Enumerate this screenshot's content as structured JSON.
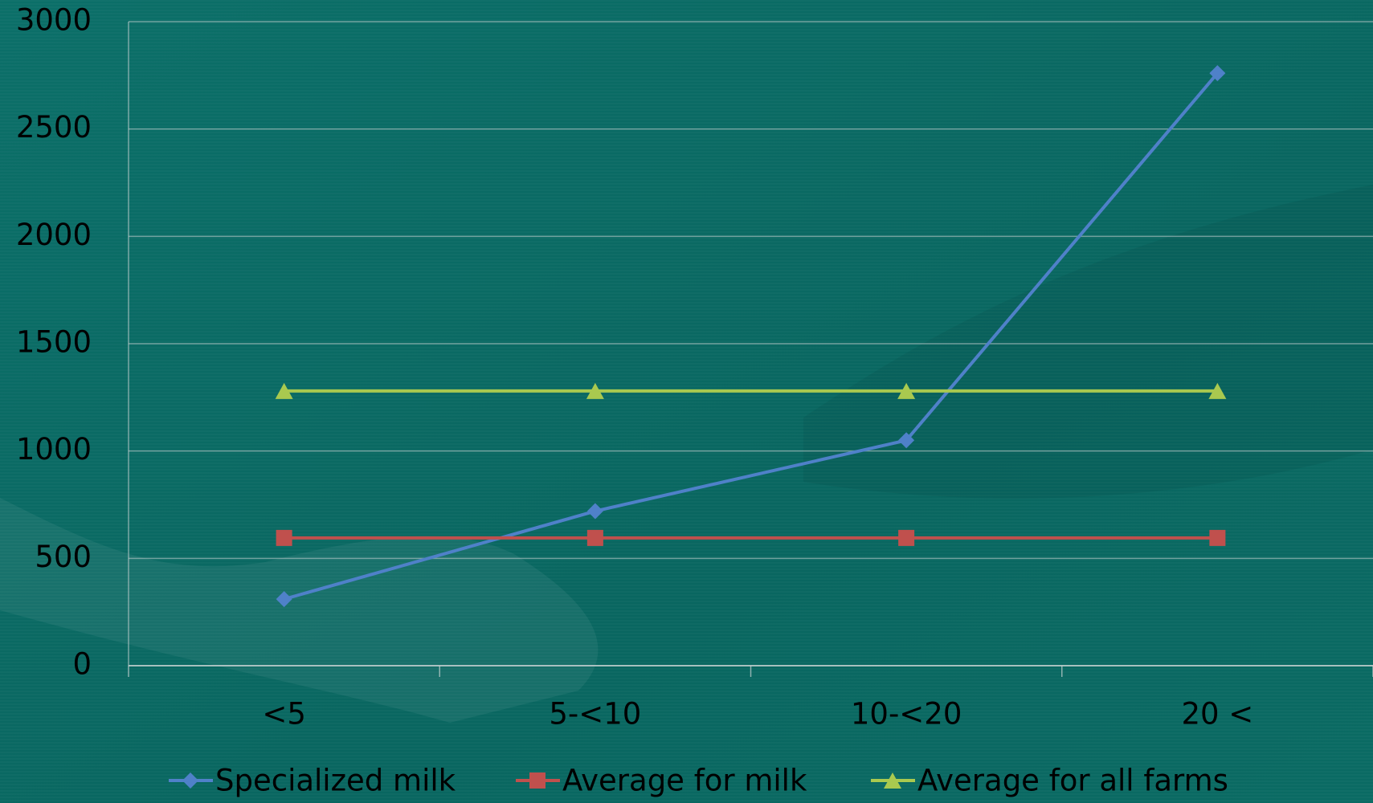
{
  "chart_data": {
    "type": "line",
    "categories": [
      "<5",
      "5-<10",
      "10-<20",
      "20 <"
    ],
    "series": [
      {
        "name": "Specialized milk",
        "color": "#4f81c9",
        "marker": "diamond",
        "values": [
          310,
          720,
          1050,
          2760
        ]
      },
      {
        "name": "Average for milk",
        "color": "#c0504d",
        "marker": "square",
        "values": [
          595,
          595,
          595,
          595
        ]
      },
      {
        "name": "Average for all farms",
        "color": "#a9c94f",
        "marker": "triangle",
        "values": [
          1280,
          1280,
          1280,
          1280
        ]
      }
    ],
    "ylim": [
      0,
      3000
    ],
    "yticks": [
      0,
      500,
      1000,
      1500,
      2000,
      2500,
      3000
    ],
    "grid": true,
    "legend": "bottom"
  }
}
